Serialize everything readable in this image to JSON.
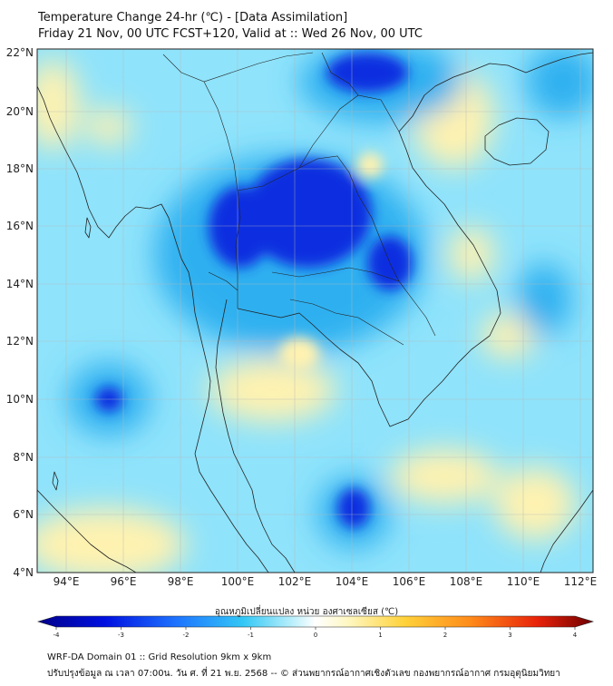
{
  "header": {
    "title_line1": "Temperature Change 24-hr (℃) - [Data Assimilation]",
    "title_line2": "Friday 21 Nov, 00 UTC FCST+120, Valid at :: Wed 26 Nov, 00 UTC"
  },
  "map": {
    "lat_labels": [
      "22°N",
      "20°N",
      "18°N",
      "16°N",
      "14°N",
      "12°N",
      "10°N",
      "8°N",
      "6°N",
      "4°N"
    ],
    "lon_labels": [
      "94°E",
      "96°E",
      "98°E",
      "100°E",
      "102°E",
      "104°E",
      "106°E",
      "108°E",
      "110°E",
      "112°E"
    ],
    "lat_range": [
      4,
      22.2
    ],
    "lon_range": [
      93,
      112.5
    ],
    "colors": {
      "background": "#8fe3fb",
      "cool": "#2fb0f0",
      "cold": "#0a2fe0",
      "warm": "#fff2b0"
    }
  },
  "colorbar": {
    "title": "อุณหภูมิเปลี่ยนแปลง หน่วย องศาเซลเซียส (℃)",
    "tick_labels": [
      "-4",
      "-3",
      "-2",
      "-1",
      "0",
      "1",
      "2",
      "3",
      "4"
    ],
    "range": [
      -4,
      4
    ]
  },
  "footer": {
    "line1": "WRF-DA Domain 01 :: Grid Resolution 9km x 9km",
    "line2": "ปรับปรุงข้อมูล ณ เวลา 07:00น. วัน ศ. ที่ 21 พ.ย. 2568 -- © ส่วนพยากรณ์อากาศเชิงตัวเลข กองพยากรณ์อากาศ กรมอุตุนิยมวิทยา"
  }
}
